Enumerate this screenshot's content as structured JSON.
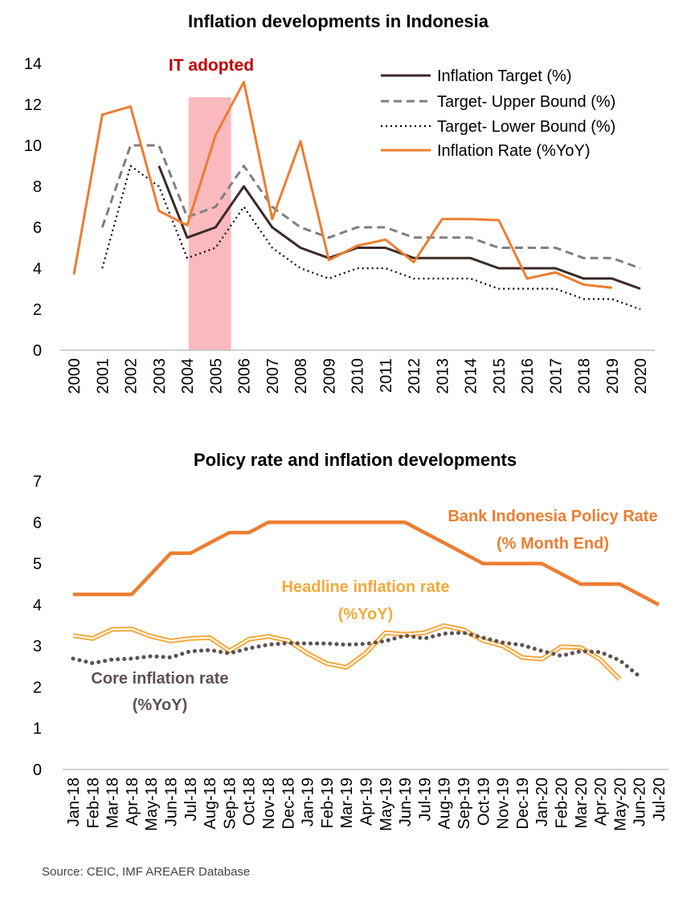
{
  "source_note": "Source: CEIC, IMF AREAER Database",
  "chart_data": [
    {
      "type": "line",
      "title": "Inflation developments in Indonesia",
      "xlabel": "",
      "ylabel": "",
      "ylim": [
        0,
        14
      ],
      "yticks": [
        "0",
        "2",
        "4",
        "6",
        "8",
        "10",
        "12",
        "14"
      ],
      "categories": [
        "2000",
        "2001",
        "2002",
        "2003",
        "2004",
        "2005",
        "2006",
        "2007",
        "2008",
        "2009",
        "2010",
        "2011",
        "2012",
        "2013",
        "2014",
        "2015",
        "2016",
        "2017",
        "2018",
        "2019",
        "2020"
      ],
      "annotation": {
        "label": "IT adopted",
        "x_from": "2004",
        "x_to": "2005",
        "color": "#f9b9bd",
        "label_color": "#c00000"
      },
      "legend_position": "top-right",
      "series": [
        {
          "name": "Inflation Target (%)",
          "style": "solid",
          "color": "#3b2a27",
          "values": [
            null,
            null,
            null,
            9,
            5.5,
            6,
            8,
            6,
            5,
            4.5,
            5,
            5,
            4.5,
            4.5,
            4.5,
            4,
            4,
            4,
            3.5,
            3.5,
            3
          ]
        },
        {
          "name": "Target- Upper Bound (%)",
          "style": "dashed",
          "color": "#7f7f7f",
          "values": [
            null,
            6,
            10,
            10,
            6.5,
            7,
            9,
            7,
            6,
            5.5,
            6,
            6,
            5.5,
            5.5,
            5.5,
            5,
            5,
            5,
            4.5,
            4.5,
            4
          ]
        },
        {
          "name": "Target- Lower Bound (%)",
          "style": "dotted",
          "color": "#000000",
          "values": [
            null,
            4,
            9,
            8,
            4.5,
            5,
            7,
            5,
            4,
            3.5,
            4,
            4,
            3.5,
            3.5,
            3.5,
            3,
            3,
            3,
            2.5,
            2.5,
            2
          ]
        },
        {
          "name": "Inflation Rate (%YoY)",
          "style": "solid",
          "color": "#ed7d31",
          "values": [
            3.7,
            11.5,
            11.9,
            6.8,
            6.1,
            10.5,
            13.1,
            6.4,
            10.2,
            4.4,
            5.1,
            5.4,
            4.3,
            6.4,
            6.4,
            6.35,
            3.5,
            3.8,
            3.2,
            3.05,
            null
          ]
        }
      ]
    },
    {
      "type": "line",
      "title": "Policy rate and inflation developments",
      "xlabel": "",
      "ylabel": "",
      "ylim": [
        0,
        7
      ],
      "yticks": [
        "0",
        "1",
        "2",
        "3",
        "4",
        "5",
        "6",
        "7"
      ],
      "categories": [
        "Jan-18",
        "Feb-18",
        "Mar-18",
        "Apr-18",
        "May-18",
        "Jun-18",
        "Jul-18",
        "Aug-18",
        "Sep-18",
        "Oct-18",
        "Nov-18",
        "Dec-18",
        "Jan-19",
        "Feb-19",
        "Mar-19",
        "Apr-19",
        "May-19",
        "Jun-19",
        "Jul-19",
        "Aug-19",
        "Sep-19",
        "Oct-19",
        "Nov-19",
        "Dec-19",
        "Jan-20",
        "Feb-20",
        "Mar-20",
        "Apr-20",
        "May-20",
        "Jun-20",
        "Jul-20"
      ],
      "series": [
        {
          "label_line1": "Bank Indonesia Policy Rate",
          "label_line2": "(% Month End)",
          "style": "solid-thick",
          "color": "#ed7d31",
          "values": [
            4.25,
            4.25,
            4.25,
            4.25,
            4.75,
            5.25,
            5.25,
            5.5,
            5.75,
            5.75,
            6,
            6,
            6,
            6,
            6,
            6,
            6,
            6,
            5.75,
            5.5,
            5.25,
            5,
            5,
            5,
            5,
            4.75,
            4.5,
            4.5,
            4.5,
            4.25,
            4
          ]
        },
        {
          "label_line1": "Headline inflation rate",
          "label_line2": "(%YoY)",
          "style": "double",
          "color": "#f4a93b",
          "values": [
            3.25,
            3.18,
            3.4,
            3.41,
            3.23,
            3.12,
            3.18,
            3.2,
            2.88,
            3.16,
            3.23,
            3.13,
            2.82,
            2.57,
            2.48,
            2.83,
            3.32,
            3.28,
            3.32,
            3.49,
            3.39,
            3.13,
            3.0,
            2.72,
            2.68,
            2.98,
            2.96,
            2.67,
            2.19,
            null,
            null
          ]
        },
        {
          "label_line1": "Core inflation rate",
          "label_line2": "(%YoY)",
          "style": "dotted-thick",
          "color": "#5e5150",
          "values": [
            2.69,
            2.58,
            2.67,
            2.69,
            2.75,
            2.72,
            2.87,
            2.9,
            2.82,
            2.94,
            3.03,
            3.07,
            3.06,
            3.06,
            3.03,
            3.05,
            3.12,
            3.25,
            3.18,
            3.3,
            3.32,
            3.2,
            3.08,
            3.02,
            2.88,
            2.76,
            2.87,
            2.85,
            2.65,
            2.26,
            null
          ]
        }
      ]
    }
  ]
}
